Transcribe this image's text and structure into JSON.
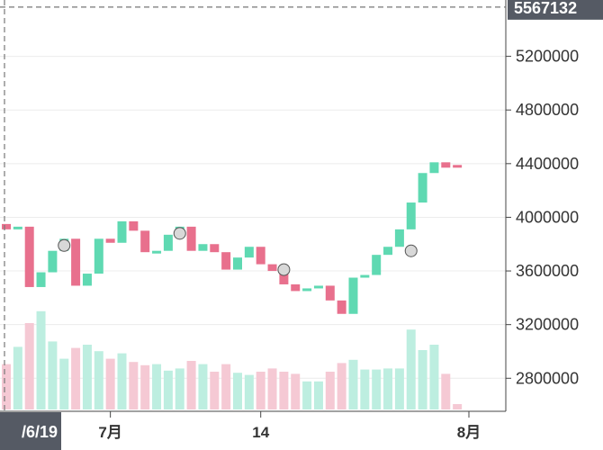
{
  "chart_data": {
    "type": "candlestick",
    "y_axis": {
      "ticks": [
        "5200000",
        "4800000",
        "4400000",
        "4000000",
        "3600000",
        "3200000",
        "2800000"
      ],
      "tick_values": [
        5200000,
        4800000,
        4400000,
        4000000,
        3600000,
        3200000,
        2800000
      ],
      "range": [
        2500000,
        5620000
      ],
      "position": "right",
      "grid": true
    },
    "x_axis": {
      "ticks": [
        {
          "label": "7月",
          "index": 9
        },
        {
          "label": "14",
          "index": 22
        },
        {
          "label": "8月",
          "index": 40
        }
      ]
    },
    "crosshair": {
      "price_label": "5567132",
      "price_value": 5567132,
      "date_label": "/6/19",
      "index": 0
    },
    "colors": {
      "up": "#5fd9b2",
      "down": "#e8708d",
      "volume_up": "#bdeee0",
      "volume_down": "#f5c9d4",
      "marker": "#d8d8d8"
    },
    "candles": [
      {
        "o": 3950000,
        "c": 3910000
      },
      {
        "o": 3910000,
        "c": 3930000
      },
      {
        "o": 3930000,
        "c": 3480000
      },
      {
        "o": 3480000,
        "c": 3590000
      },
      {
        "o": 3590000,
        "c": 3750000
      },
      {
        "o": 3750000,
        "c": 3840000
      },
      {
        "o": 3840000,
        "c": 3490000
      },
      {
        "o": 3490000,
        "c": 3580000
      },
      {
        "o": 3580000,
        "c": 3840000
      },
      {
        "o": 3840000,
        "c": 3810000
      },
      {
        "o": 3810000,
        "c": 3970000
      },
      {
        "o": 3970000,
        "c": 3900000
      },
      {
        "o": 3900000,
        "c": 3740000
      },
      {
        "o": 3740000,
        "c": 3750000
      },
      {
        "o": 3750000,
        "c": 3870000
      },
      {
        "o": 3870000,
        "c": 3930000
      },
      {
        "o": 3930000,
        "c": 3750000
      },
      {
        "o": 3750000,
        "c": 3800000
      },
      {
        "o": 3800000,
        "c": 3740000
      },
      {
        "o": 3740000,
        "c": 3610000
      },
      {
        "o": 3610000,
        "c": 3700000
      },
      {
        "o": 3700000,
        "c": 3780000
      },
      {
        "o": 3780000,
        "c": 3650000
      },
      {
        "o": 3650000,
        "c": 3600000
      },
      {
        "o": 3600000,
        "c": 3500000
      },
      {
        "o": 3500000,
        "c": 3450000
      },
      {
        "o": 3450000,
        "c": 3470000
      },
      {
        "o": 3470000,
        "c": 3490000
      },
      {
        "o": 3490000,
        "c": 3380000
      },
      {
        "o": 3380000,
        "c": 3280000
      },
      {
        "o": 3280000,
        "c": 3550000
      },
      {
        "o": 3550000,
        "c": 3570000
      },
      {
        "o": 3570000,
        "c": 3720000
      },
      {
        "o": 3720000,
        "c": 3780000
      },
      {
        "o": 3780000,
        "c": 3910000
      },
      {
        "o": 3910000,
        "c": 4110000
      },
      {
        "o": 4110000,
        "c": 4330000
      },
      {
        "o": 4330000,
        "c": 4410000
      },
      {
        "o": 4410000,
        "c": 4370000
      },
      {
        "o": 4390000,
        "c": 4370000
      }
    ],
    "volume": [
      0.42,
      0.58,
      0.8,
      0.91,
      0.63,
      0.47,
      0.57,
      0.6,
      0.54,
      0.47,
      0.52,
      0.44,
      0.41,
      0.42,
      0.36,
      0.38,
      0.45,
      0.42,
      0.35,
      0.42,
      0.34,
      0.32,
      0.35,
      0.38,
      0.35,
      0.33,
      0.26,
      0.26,
      0.35,
      0.43,
      0.46,
      0.37,
      0.37,
      0.38,
      0.38,
      0.74,
      0.55,
      0.6,
      0.33,
      0.05
    ],
    "markers": [
      {
        "index": 5,
        "value": 3790000
      },
      {
        "index": 15,
        "value": 3880000
      },
      {
        "index": 24,
        "value": 3610000
      },
      {
        "index": 35,
        "value": 3750000
      }
    ]
  }
}
